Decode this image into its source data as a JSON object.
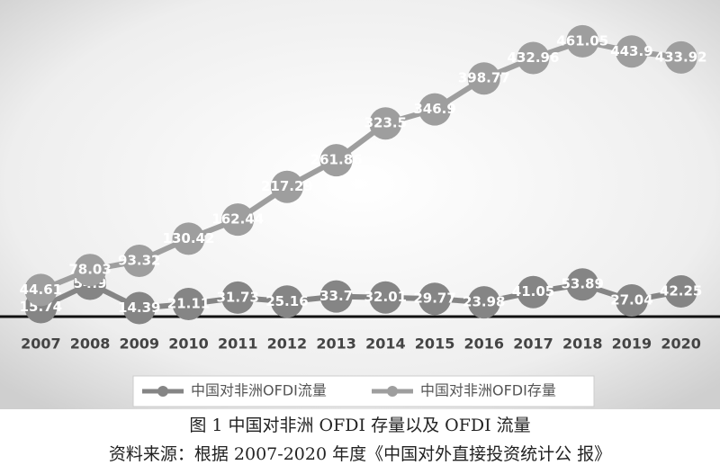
{
  "chart_data": {
    "type": "line",
    "categories": [
      "2007",
      "2008",
      "2009",
      "2010",
      "2011",
      "2012",
      "2013",
      "2014",
      "2015",
      "2016",
      "2017",
      "2018",
      "2019",
      "2020"
    ],
    "series": [
      {
        "name": "中国对非洲OFDI流量",
        "color": "#858585",
        "values": [
          15.74,
          54.9,
          14.39,
          21.11,
          31.73,
          25.16,
          33.7,
          32.01,
          29.77,
          23.98,
          41.05,
          53.89,
          27.04,
          42.25
        ]
      },
      {
        "name": "中国对非洲OFDI存量",
        "color": "#9e9e9e",
        "values": [
          44.61,
          78.03,
          93.32,
          130.42,
          162.44,
          217.29,
          261.86,
          323.5,
          346.9,
          398.77,
          432.96,
          461.05,
          443.9,
          433.92
        ]
      }
    ],
    "ylim": [
      0,
      500
    ],
    "legend": "bottom",
    "caption": "图 1 中国对非洲 OFDI 存量以及 OFDI 流量",
    "source": "资料来源：根据 2007-2020 年度《中国对外直接投资统计公 报》"
  }
}
